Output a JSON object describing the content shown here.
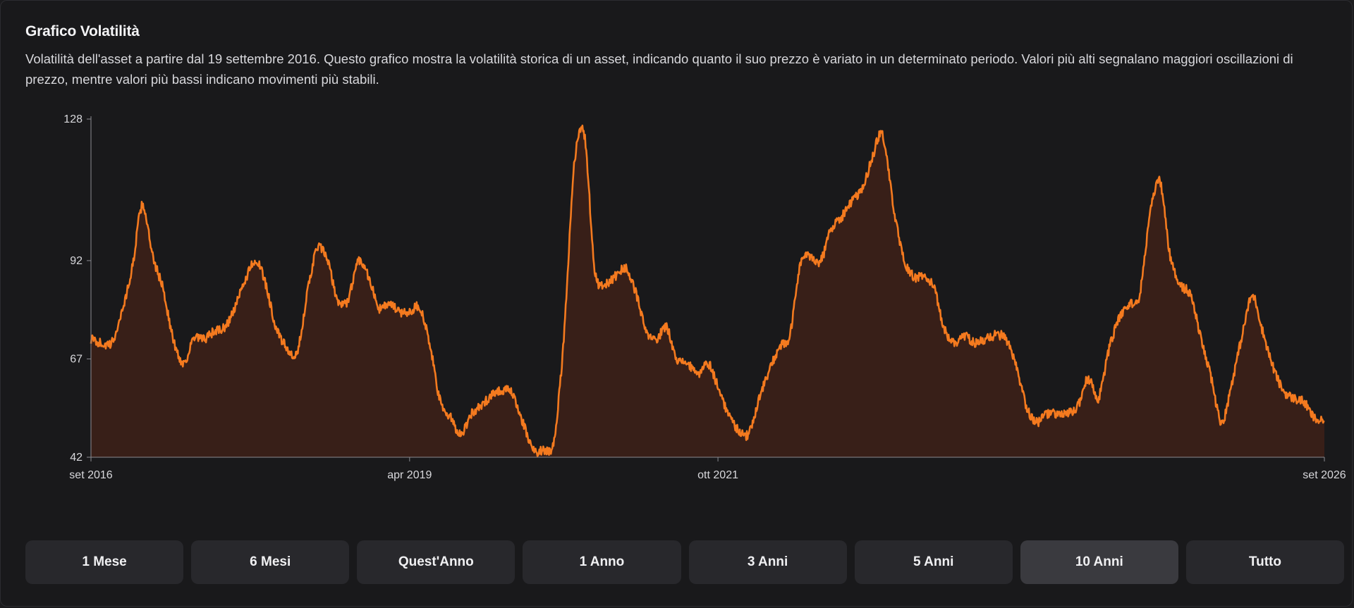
{
  "header": {
    "title": "Grafico Volatilità",
    "description": "Volatilità dell'asset a partire dal 19 settembre 2016. Questo grafico mostra la volatilità storica di un asset, indicando quanto il suo prezzo è variato in un determinato periodo. Valori più alti segnalano maggiori oscillazioni di prezzo, mentre valori più bassi indicano movimenti più stabili."
  },
  "range_buttons": [
    {
      "label": "1 Mese",
      "active": false
    },
    {
      "label": "6 Mesi",
      "active": false
    },
    {
      "label": "Quest'Anno",
      "active": false
    },
    {
      "label": "1 Anno",
      "active": false
    },
    {
      "label": "3 Anni",
      "active": false
    },
    {
      "label": "5 Anni",
      "active": false
    },
    {
      "label": "10 Anni",
      "active": true
    },
    {
      "label": "Tutto",
      "active": false
    }
  ],
  "colors": {
    "line": "#f47a1f",
    "fill": "#3a2018",
    "axis": "#8a8a90"
  },
  "chart_data": {
    "type": "area",
    "title": "",
    "xlabel": "",
    "ylabel": "",
    "ylim": [
      42,
      128
    ],
    "y_ticks": [
      42,
      67,
      92,
      128
    ],
    "x_range": [
      "2016-09",
      "2026-09"
    ],
    "x_ticks": [
      {
        "label": "set 2016",
        "x": "2016-09"
      },
      {
        "label": "apr 2019",
        "x": "2019-04"
      },
      {
        "label": "ott 2021",
        "x": "2021-10"
      },
      {
        "label": "set 2026",
        "x": "2026-09"
      }
    ],
    "grid": false,
    "series": [
      {
        "points": [
          [
            "2016-09",
            72
          ],
          [
            "2016-10",
            71
          ],
          [
            "2016-11",
            71
          ],
          [
            "2016-12",
            79
          ],
          [
            "2017-01",
            90
          ],
          [
            "2017-02",
            106
          ],
          [
            "2017-03",
            93
          ],
          [
            "2017-04",
            85
          ],
          [
            "2017-05",
            72
          ],
          [
            "2017-06",
            66
          ],
          [
            "2017-07",
            72
          ],
          [
            "2017-08",
            72
          ],
          [
            "2017-09",
            74
          ],
          [
            "2017-10",
            75
          ],
          [
            "2017-11",
            80
          ],
          [
            "2017-12",
            87
          ],
          [
            "2018-01",
            92
          ],
          [
            "2018-02",
            86
          ],
          [
            "2018-03",
            75
          ],
          [
            "2018-04",
            70
          ],
          [
            "2018-05",
            68
          ],
          [
            "2018-06",
            83
          ],
          [
            "2018-07",
            95
          ],
          [
            "2018-08",
            92
          ],
          [
            "2018-09",
            82
          ],
          [
            "2018-10",
            82
          ],
          [
            "2018-11",
            92
          ],
          [
            "2018-12",
            88
          ],
          [
            "2019-01",
            80
          ],
          [
            "2019-02",
            81
          ],
          [
            "2019-03",
            79
          ],
          [
            "2019-04",
            79
          ],
          [
            "2019-05",
            80
          ],
          [
            "2019-06",
            70
          ],
          [
            "2019-07",
            56
          ],
          [
            "2019-08",
            52
          ],
          [
            "2019-09",
            48
          ],
          [
            "2019-10",
            53
          ],
          [
            "2019-11",
            55
          ],
          [
            "2019-12",
            58
          ],
          [
            "2020-01",
            59
          ],
          [
            "2020-02",
            58
          ],
          [
            "2020-03",
            51
          ],
          [
            "2020-04",
            44
          ],
          [
            "2020-05",
            44
          ],
          [
            "2020-06",
            46
          ],
          [
            "2020-07",
            72
          ],
          [
            "2020-08",
            116
          ],
          [
            "2020-09",
            124
          ],
          [
            "2020-10",
            90
          ],
          [
            "2020-11",
            86
          ],
          [
            "2020-12",
            88
          ],
          [
            "2021-01",
            90
          ],
          [
            "2021-02",
            84
          ],
          [
            "2021-03",
            74
          ],
          [
            "2021-04",
            72
          ],
          [
            "2021-05",
            75
          ],
          [
            "2021-06",
            67
          ],
          [
            "2021-07",
            66
          ],
          [
            "2021-08",
            63
          ],
          [
            "2021-09",
            66
          ],
          [
            "2021-10",
            60
          ],
          [
            "2021-11",
            53
          ],
          [
            "2021-12",
            49
          ],
          [
            "2022-01",
            48
          ],
          [
            "2022-02",
            57
          ],
          [
            "2022-03",
            64
          ],
          [
            "2022-04",
            70
          ],
          [
            "2022-05",
            73
          ],
          [
            "2022-06",
            91
          ],
          [
            "2022-07",
            93
          ],
          [
            "2022-08",
            92
          ],
          [
            "2022-09",
            100
          ],
          [
            "2022-10",
            103
          ],
          [
            "2022-11",
            107
          ],
          [
            "2022-12",
            110
          ],
          [
            "2023-01",
            118
          ],
          [
            "2023-02",
            124
          ],
          [
            "2023-03",
            107
          ],
          [
            "2023-04",
            93
          ],
          [
            "2023-05",
            88
          ],
          [
            "2023-06",
            88
          ],
          [
            "2023-07",
            85
          ],
          [
            "2023-08",
            75
          ],
          [
            "2023-09",
            71
          ],
          [
            "2023-10",
            73
          ],
          [
            "2023-11",
            71
          ],
          [
            "2023-12",
            72
          ],
          [
            "2024-01",
            73
          ],
          [
            "2024-02",
            72
          ],
          [
            "2024-03",
            65
          ],
          [
            "2024-04",
            55
          ],
          [
            "2024-05",
            51
          ],
          [
            "2024-06",
            53
          ],
          [
            "2024-07",
            53
          ],
          [
            "2024-08",
            53
          ],
          [
            "2024-09",
            55
          ],
          [
            "2024-10",
            62
          ],
          [
            "2024-11",
            57
          ],
          [
            "2024-12",
            69
          ],
          [
            "2025-01",
            77
          ],
          [
            "2025-02",
            81
          ],
          [
            "2025-03",
            83
          ],
          [
            "2025-04",
            103
          ],
          [
            "2025-05",
            112
          ],
          [
            "2025-06",
            93
          ],
          [
            "2025-07",
            86
          ],
          [
            "2025-08",
            83
          ],
          [
            "2025-09",
            72
          ],
          [
            "2025-10",
            62
          ],
          [
            "2025-11",
            51
          ],
          [
            "2025-12",
            61
          ],
          [
            "2026-01",
            73
          ],
          [
            "2026-02",
            83
          ],
          [
            "2026-03",
            74
          ],
          [
            "2026-04",
            65
          ],
          [
            "2026-05",
            59
          ],
          [
            "2026-06",
            57
          ],
          [
            "2026-07",
            56
          ],
          [
            "2026-08",
            52
          ],
          [
            "2026-09",
            51
          ]
        ]
      }
    ]
  }
}
